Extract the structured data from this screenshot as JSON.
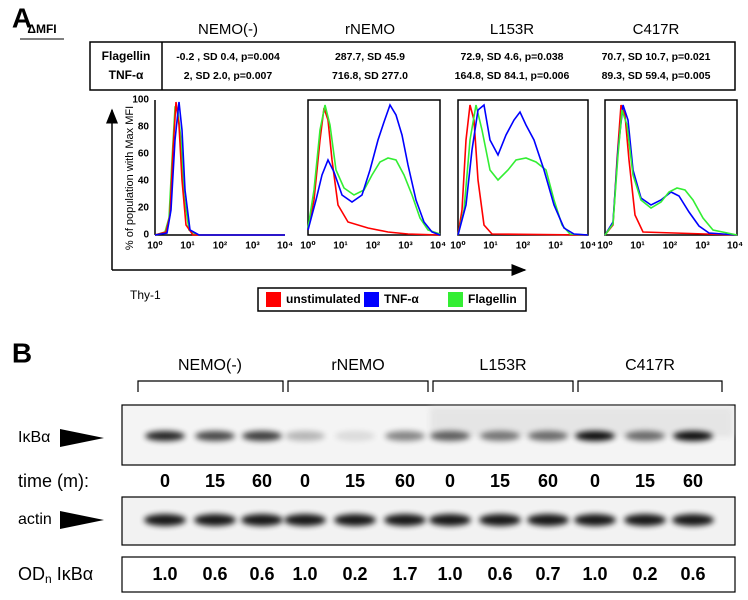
{
  "panel_a": {
    "label": "A",
    "table": {
      "corner": "ΔMFI",
      "columns": [
        "NEMO(-)",
        "rNEMO",
        "L153R",
        "C417R"
      ],
      "rows": [
        {
          "name": "Flagellin",
          "cells": [
            "-0.2 , SD 0.4, p=0.004",
            "287.7, SD 45.9",
            "72.9, SD 4.6, p=0.038",
            "70.7, SD 10.7, p=0.021"
          ]
        },
        {
          "name": "TNF-α",
          "cells": [
            "2, SD 2.0, p=0.007",
            "716.8, SD 277.0",
            "164.8, SD 84.1, p=0.006",
            "89.3, SD 59.4, p=0.005"
          ]
        }
      ]
    },
    "y_axis_label": "% of population with Max MFI",
    "y_ticks": [
      "0",
      "20",
      "40",
      "60",
      "80",
      "100"
    ],
    "x_ticks": [
      "10⁰",
      "10¹",
      "10²",
      "10³",
      "10⁴"
    ],
    "x_axis_label": "Thy-1",
    "legend": [
      {
        "name": "unstimulated",
        "color": "#ff0000"
      },
      {
        "name": "TNF-α",
        "color": "#0000ff"
      },
      {
        "name": "Flagellin",
        "color": "#33ee33"
      }
    ]
  },
  "panel_b": {
    "label": "B",
    "groups": [
      "NEMO(-)",
      "rNEMO",
      "L153R",
      "C417R"
    ],
    "band_label": "IκBα",
    "time_label": "time (m):",
    "times": [
      "0",
      "15",
      "60",
      "0",
      "15",
      "60",
      "0",
      "15",
      "60",
      "0",
      "15",
      "60"
    ],
    "actin_label": "actin",
    "od_label": {
      "main": "OD",
      "sub": "n",
      "rest": " IκBα"
    },
    "od_values": [
      "1.0",
      "0.6",
      "0.6",
      "1.0",
      "0.2",
      "1.7",
      "1.0",
      "0.6",
      "0.7",
      "1.0",
      "0.2",
      "0.6"
    ]
  }
}
